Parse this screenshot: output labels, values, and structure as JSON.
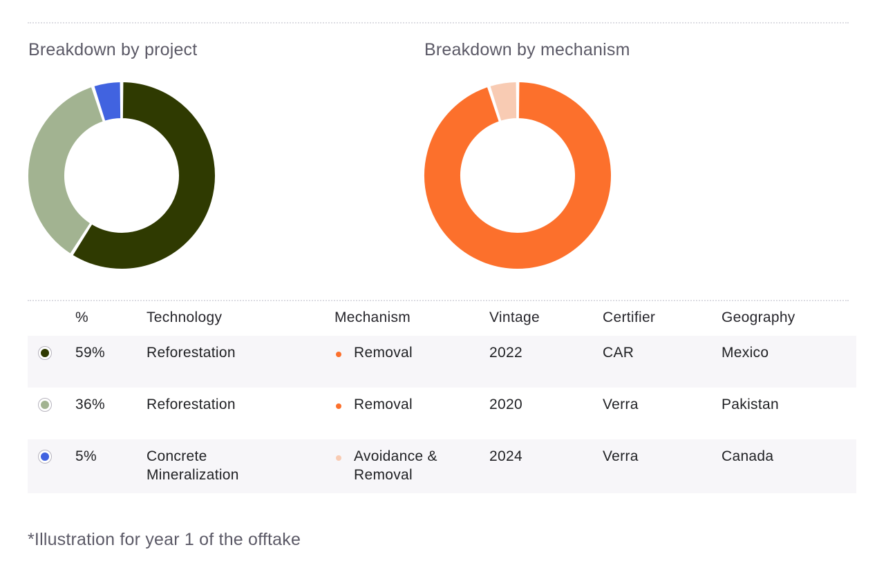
{
  "chart_data": [
    {
      "type": "pie",
      "title": "Breakdown by project",
      "categories": [
        "Reforestation (CAR, Mexico, 2022)",
        "Reforestation (Verra, Pakistan, 2020)",
        "Concrete Mineralization (Verra, Canada, 2024)"
      ],
      "values": [
        59,
        36,
        5
      ],
      "colors": [
        "#2f3a01",
        "#a2b391",
        "#4163e0"
      ]
    },
    {
      "type": "pie",
      "title": "Breakdown by mechanism",
      "categories": [
        "Removal",
        "Avoidance & Removal"
      ],
      "values": [
        95,
        5
      ],
      "colors": [
        "#fc702c",
        "#f8cbb3"
      ]
    }
  ],
  "table": {
    "headers": {
      "pct": "%",
      "technology": "Technology",
      "mechanism": "Mechanism",
      "vintage": "Vintage",
      "certifier": "Certifier",
      "geography": "Geography"
    },
    "rows": [
      {
        "pct": "59%",
        "technology": "Reforestation",
        "mechanism": "Removal",
        "vintage": "2022",
        "certifier": "CAR",
        "geography": "Mexico",
        "project_color": "#2f3a01",
        "mechanism_color": "#fc702c"
      },
      {
        "pct": "36%",
        "technology": "Reforestation",
        "mechanism": "Removal",
        "vintage": "2020",
        "certifier": "Verra",
        "geography": "Pakistan",
        "project_color": "#a2b391",
        "mechanism_color": "#fc702c"
      },
      {
        "pct": "5%",
        "technology": "Concrete Mineralization",
        "mechanism": "Avoidance & Removal",
        "vintage": "2024",
        "certifier": "Verra",
        "geography": "Canada",
        "project_color": "#4163e0",
        "mechanism_color": "#f8cbb3"
      }
    ]
  },
  "footnote": "*Illustration for year 1 of the offtake"
}
